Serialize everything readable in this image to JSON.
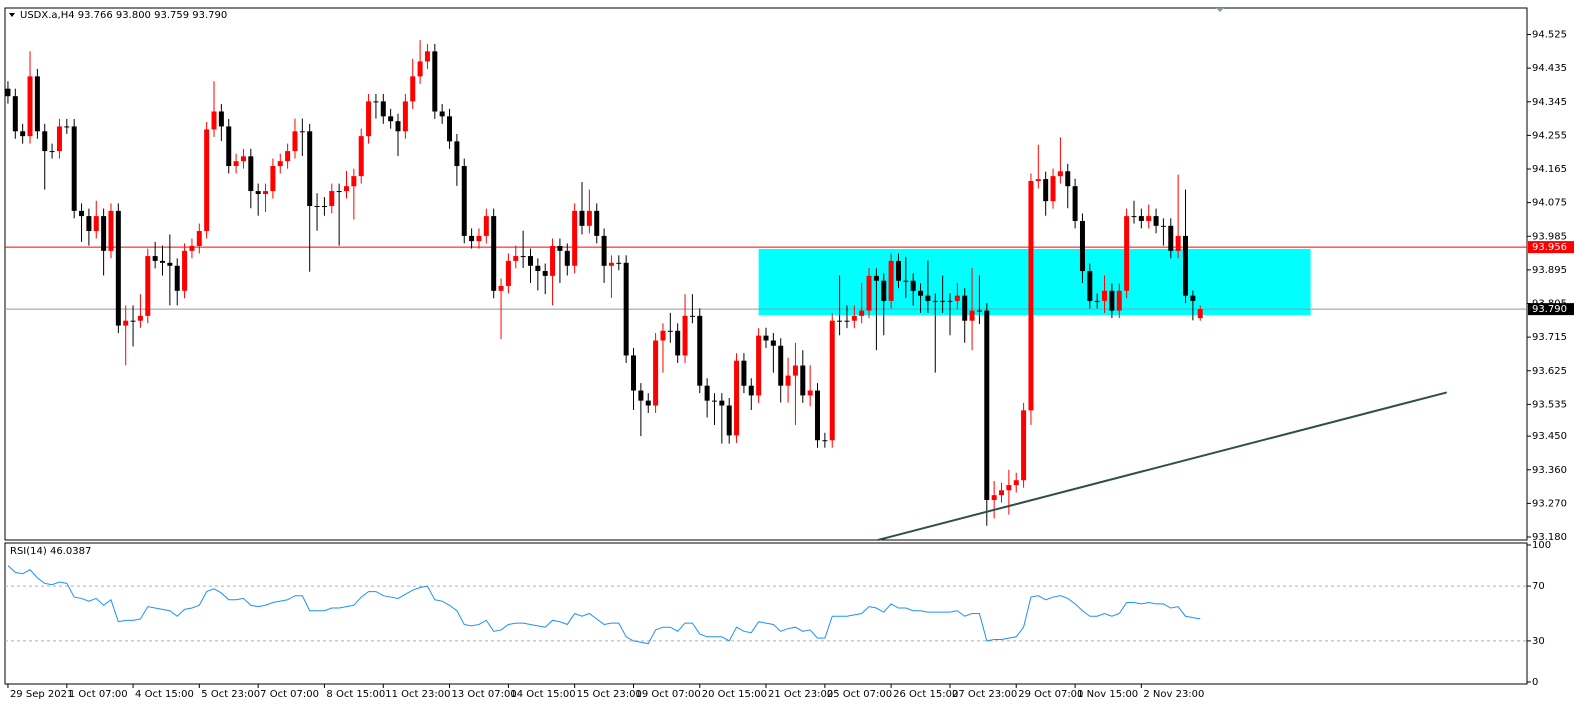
{
  "chart_data": {
    "type": "candlestick",
    "title": "USDX.a,H4  93.766 93.800 93.759 93.790",
    "up_color": "#ff0000",
    "down_color": "#000000",
    "categories": [
      "29 Sep 2021",
      null,
      null,
      null,
      null,
      null,
      null,
      null,
      "1 Oct 07:00",
      null,
      null,
      null,
      null,
      null,
      null,
      null,
      null,
      "4 Oct 15:00",
      null,
      null,
      null,
      null,
      null,
      null,
      null,
      null,
      "5 Oct 23:00",
      null,
      null,
      null,
      null,
      null,
      null,
      null,
      "7 Oct 07:00",
      null,
      null,
      null,
      null,
      null,
      null,
      null,
      null,
      "8 Oct 15:00",
      null,
      null,
      null,
      null,
      null,
      null,
      null,
      "11 Oct 23:00",
      null,
      null,
      null,
      null,
      null,
      null,
      null,
      null,
      "13 Oct 07:00",
      null,
      null,
      null,
      null,
      null,
      null,
      null,
      "14 Oct 15:00",
      null,
      null,
      null,
      null,
      null,
      null,
      null,
      null,
      "15 Oct 23:00",
      null,
      null,
      null,
      null,
      null,
      null,
      null,
      "19 Oct 07:00",
      null,
      null,
      null,
      null,
      null,
      null,
      null,
      null,
      "20 Oct 15:00",
      null,
      null,
      null,
      null,
      null,
      null,
      null,
      null,
      "21 Oct 23:00",
      null,
      null,
      null,
      null,
      null,
      null,
      null,
      "25 Oct 07:00",
      null,
      null,
      null,
      null,
      null,
      null,
      null,
      null,
      "26 Oct 15:00",
      null,
      null,
      null,
      null,
      null,
      null,
      null,
      "27 Oct 23:00",
      null,
      null,
      null,
      null,
      null,
      null,
      null,
      null,
      "29 Oct 07:00",
      null,
      null,
      null,
      null,
      null,
      null,
      null,
      "1 Nov 15:00",
      null,
      null,
      null,
      null,
      null,
      null,
      null,
      null,
      "2 Nov 23:00",
      null,
      null,
      null,
      null,
      null,
      null,
      null,
      null
    ],
    "open": [
      94.38,
      94.36,
      94.266,
      94.253,
      94.413,
      94.266,
      94.213,
      94.213,
      94.279,
      94.279,
      94.053,
      94.039,
      93.999,
      94.039,
      93.946,
      94.053,
      93.746,
      93.759,
      93.759,
      93.772,
      93.932,
      93.919,
      93.914,
      93.906,
      93.839,
      93.946,
      93.959,
      93.999,
      94.271,
      94.319,
      94.279,
      94.173,
      94.186,
      94.199,
      94.106,
      94.098,
      94.106,
      94.173,
      94.186,
      94.213,
      94.266,
      94.266,
      94.066,
      94.066,
      94.066,
      94.106,
      94.106,
      94.119,
      94.146,
      94.253,
      94.346,
      94.346,
      94.306,
      94.293,
      94.266,
      94.346,
      94.413,
      94.453,
      94.48,
      94.319,
      94.306,
      94.239,
      94.173,
      93.986,
      93.972,
      93.986,
      94.039,
      93.839,
      93.852,
      93.919,
      93.932,
      93.932,
      93.906,
      93.892,
      93.879,
      93.959,
      93.946,
      93.906,
      94.053,
      94.013,
      94.053,
      93.986,
      93.906,
      93.914,
      93.914,
      93.666,
      93.572,
      93.545,
      93.532,
      93.706,
      93.732,
      93.732,
      93.666,
      93.772,
      93.772,
      93.585,
      93.545,
      93.545,
      93.532,
      93.452,
      93.652,
      93.585,
      93.559,
      93.719,
      93.706,
      93.692,
      93.585,
      93.612,
      93.639,
      93.559,
      93.572,
      93.439,
      93.439,
      93.759,
      93.759,
      93.759,
      93.772,
      93.786,
      93.879,
      93.866,
      93.812,
      93.919,
      93.866,
      93.866,
      93.839,
      93.826,
      93.812,
      93.812,
      93.812,
      93.812,
      93.826,
      93.759,
      93.786,
      93.786,
      93.279,
      93.292,
      93.305,
      93.319,
      93.332,
      93.519,
      94.133,
      94.138,
      94.079,
      94.146,
      94.159,
      94.119,
      94.026,
      93.892,
      93.812,
      93.812,
      93.839,
      93.786,
      93.839,
      94.039,
      94.039,
      94.026,
      94.039,
      94.013,
      94.013,
      93.946,
      93.986,
      93.826,
      93.766
    ],
    "high": [
      94.4,
      94.38,
      94.286,
      94.48,
      94.433,
      94.286,
      94.233,
      94.299,
      94.299,
      94.299,
      94.073,
      94.059,
      94.08,
      94.059,
      94.073,
      94.073,
      93.8,
      93.8,
      93.83,
      93.952,
      93.97,
      93.96,
      93.99,
      93.926,
      93.966,
      93.979,
      94.019,
      94.291,
      94.4,
      94.339,
      94.299,
      94.206,
      94.219,
      94.219,
      94.126,
      94.126,
      94.193,
      94.206,
      94.233,
      94.3,
      94.3,
      94.286,
      94.1,
      94.09,
      94.126,
      94.126,
      94.16,
      94.166,
      94.273,
      94.366,
      94.366,
      94.366,
      94.326,
      94.313,
      94.366,
      94.46,
      94.51,
      94.5,
      94.5,
      94.339,
      94.326,
      94.259,
      94.193,
      94.006,
      94.006,
      94.059,
      94.059,
      93.872,
      93.939,
      93.96,
      94.0,
      93.952,
      93.926,
      93.912,
      93.979,
      93.979,
      93.966,
      94.073,
      94.13,
      94.11,
      94.073,
      94.006,
      93.934,
      93.934,
      93.934,
      93.686,
      93.592,
      93.565,
      93.726,
      93.752,
      93.78,
      93.752,
      93.83,
      93.83,
      93.792,
      93.605,
      93.565,
      93.565,
      93.552,
      93.672,
      93.672,
      93.605,
      93.739,
      93.74,
      93.726,
      93.712,
      93.66,
      93.7,
      93.68,
      93.64,
      93.592,
      93.459,
      93.779,
      93.88,
      93.8,
      93.8,
      93.86,
      93.9,
      93.899,
      93.886,
      93.939,
      93.939,
      93.93,
      93.886,
      93.859,
      93.92,
      93.832,
      93.88,
      93.832,
      93.86,
      93.846,
      93.9,
      93.88,
      93.806,
      93.33,
      93.325,
      93.36,
      93.352,
      93.539,
      94.153,
      94.23,
      94.158,
      94.166,
      94.25,
      94.179,
      94.139,
      94.046,
      93.912,
      93.832,
      93.88,
      93.859,
      93.859,
      94.059,
      94.08,
      94.059,
      94.07,
      94.059,
      94.033,
      94.033,
      94.15,
      94.11,
      93.84,
      93.8
    ],
    "low": [
      94.34,
      94.246,
      94.233,
      94.233,
      94.246,
      94.11,
      94.193,
      94.193,
      94.259,
      94.033,
      93.97,
      93.96,
      93.979,
      93.88,
      93.926,
      93.726,
      93.64,
      93.69,
      93.74,
      93.752,
      93.899,
      93.88,
      93.8,
      93.8,
      93.819,
      93.926,
      93.939,
      93.979,
      94.251,
      94.24,
      94.153,
      94.153,
      94.166,
      94.06,
      94.04,
      94.05,
      94.086,
      94.153,
      94.166,
      94.193,
      94.2,
      93.89,
      94.0,
      94.04,
      94.046,
      93.96,
      94.086,
      94.03,
      94.126,
      94.233,
      94.3,
      94.286,
      94.273,
      94.2,
      94.246,
      94.326,
      94.393,
      94.433,
      94.299,
      94.286,
      94.219,
      94.12,
      93.966,
      93.952,
      93.952,
      93.966,
      93.819,
      93.71,
      93.832,
      93.899,
      93.9,
      93.86,
      93.84,
      93.83,
      93.8,
      93.86,
      93.88,
      93.886,
      93.99,
      93.993,
      93.966,
      93.86,
      93.82,
      93.894,
      93.646,
      93.52,
      93.45,
      93.512,
      93.512,
      93.62,
      93.7,
      93.646,
      93.646,
      93.752,
      93.565,
      93.5,
      93.48,
      93.43,
      93.43,
      93.432,
      93.565,
      93.52,
      93.539,
      93.686,
      93.62,
      93.54,
      93.54,
      93.48,
      93.539,
      93.53,
      93.419,
      93.419,
      93.419,
      93.72,
      93.739,
      93.739,
      93.752,
      93.766,
      93.68,
      93.72,
      93.792,
      93.846,
      93.82,
      93.8,
      93.78,
      93.78,
      93.62,
      93.78,
      93.72,
      93.79,
      93.7,
      93.68,
      93.75,
      93.21,
      93.23,
      93.272,
      93.24,
      93.299,
      93.312,
      93.48,
      94.113,
      94.04,
      94.059,
      94.126,
      94.06,
      94.006,
      93.86,
      93.792,
      93.792,
      93.78,
      93.766,
      93.766,
      93.819,
      94.019,
      94.006,
      94.006,
      93.993,
      93.96,
      93.926,
      93.926,
      93.806,
      93.76,
      93.759
    ],
    "close": [
      94.36,
      94.266,
      94.253,
      94.413,
      94.266,
      94.213,
      94.213,
      94.279,
      94.279,
      94.053,
      94.039,
      93.999,
      94.039,
      93.946,
      94.053,
      93.746,
      93.759,
      93.759,
      93.772,
      93.932,
      93.919,
      93.914,
      93.906,
      93.839,
      93.946,
      93.959,
      93.999,
      94.271,
      94.319,
      94.279,
      94.173,
      94.186,
      94.199,
      94.106,
      94.098,
      94.106,
      94.173,
      94.186,
      94.213,
      94.266,
      94.266,
      94.066,
      94.066,
      94.066,
      94.106,
      94.106,
      94.119,
      94.146,
      94.253,
      94.346,
      94.346,
      94.306,
      94.293,
      94.266,
      94.346,
      94.413,
      94.453,
      94.48,
      94.319,
      94.306,
      94.239,
      94.173,
      93.986,
      93.972,
      93.986,
      94.039,
      93.839,
      93.852,
      93.919,
      93.932,
      93.932,
      93.906,
      93.892,
      93.879,
      93.959,
      93.946,
      93.906,
      94.053,
      94.013,
      94.053,
      93.986,
      93.906,
      93.914,
      93.914,
      93.666,
      93.572,
      93.545,
      93.532,
      93.706,
      93.732,
      93.732,
      93.666,
      93.772,
      93.772,
      93.585,
      93.545,
      93.545,
      93.532,
      93.452,
      93.652,
      93.585,
      93.559,
      93.719,
      93.706,
      93.692,
      93.585,
      93.612,
      93.639,
      93.559,
      93.572,
      93.439,
      93.439,
      93.759,
      93.759,
      93.759,
      93.772,
      93.786,
      93.879,
      93.866,
      93.812,
      93.919,
      93.866,
      93.866,
      93.839,
      93.826,
      93.812,
      93.812,
      93.812,
      93.812,
      93.826,
      93.759,
      93.786,
      93.786,
      93.279,
      93.292,
      93.305,
      93.319,
      93.332,
      93.519,
      94.133,
      94.138,
      94.079,
      94.146,
      94.159,
      94.119,
      94.026,
      93.892,
      93.812,
      93.812,
      93.839,
      93.786,
      93.839,
      94.039,
      94.039,
      94.026,
      94.039,
      94.013,
      94.013,
      93.946,
      93.986,
      93.826,
      93.812,
      93.79
    ],
    "xlim": [
      -0.4,
      206.4
    ],
    "ylim": [
      93.172,
      94.596
    ],
    "yticks": [
      94.525,
      94.435,
      94.345,
      94.255,
      94.165,
      94.075,
      93.985,
      93.895,
      93.805,
      93.715,
      93.625,
      93.535,
      {
        "value": 93.45,
        "label": "93.450"
      },
      {
        "value": 93.36,
        "label": "93.360"
      },
      {
        "value": 93.27,
        "label": "93.270"
      },
      {
        "value": 93.18,
        "label": "93.180"
      }
    ],
    "price_lines": [
      {
        "value": 93.956,
        "color": "#ff0000",
        "box_color": "#ff0000"
      },
      {
        "value": 93.79,
        "label": "93.790",
        "color": "#8c9aa8",
        "box_color": "#000000"
      }
    ],
    "zone": {
      "x": [
        102,
        177
      ],
      "y": [
        93.774,
        93.951
      ],
      "color": "#00ffff"
    },
    "trendline": {
      "x": [
        118.2,
        195.5
      ],
      "y": [
        93.172,
        93.567
      ],
      "color": "#2f4f4f"
    },
    "indicator": {
      "title": "RSI(14) 46.0387",
      "color": "#1e90ff",
      "ylim": [
        0,
        100
      ],
      "yticks": [
        100,
        70,
        30,
        0
      ],
      "values": [
        85,
        80,
        79,
        82,
        76,
        72,
        71,
        73,
        72,
        62,
        61,
        59,
        61,
        56,
        60,
        44,
        45,
        45,
        46,
        55,
        54,
        53,
        52,
        48,
        53,
        54,
        56,
        66,
        68,
        65,
        60,
        60,
        61,
        56,
        55,
        56,
        58,
        59,
        60,
        63,
        63,
        52,
        52,
        52,
        54,
        54,
        55,
        56,
        62,
        66,
        66,
        63,
        62,
        61,
        64,
        67,
        69,
        70,
        60,
        59,
        56,
        52,
        42,
        41,
        42,
        45,
        37,
        38,
        42,
        43,
        43,
        42,
        41,
        40,
        45,
        44,
        42,
        50,
        48,
        50,
        46,
        42,
        43,
        43,
        33,
        30,
        29,
        28,
        38,
        40,
        40,
        37,
        43,
        43,
        35,
        33,
        33,
        33,
        30,
        40,
        37,
        36,
        44,
        43,
        42,
        37,
        39,
        40,
        37,
        38,
        32,
        32,
        48,
        48,
        48,
        49,
        50,
        55,
        54,
        51,
        57,
        54,
        54,
        52,
        52,
        51,
        51,
        51,
        51,
        52,
        48,
        50,
        50,
        30,
        31,
        31,
        32,
        33,
        40,
        62,
        63,
        60,
        62,
        63,
        61,
        57,
        52,
        48,
        48,
        50,
        48,
        50,
        58,
        58,
        57,
        58,
        57,
        57,
        54,
        55,
        48,
        47,
        46.0387
      ]
    }
  }
}
